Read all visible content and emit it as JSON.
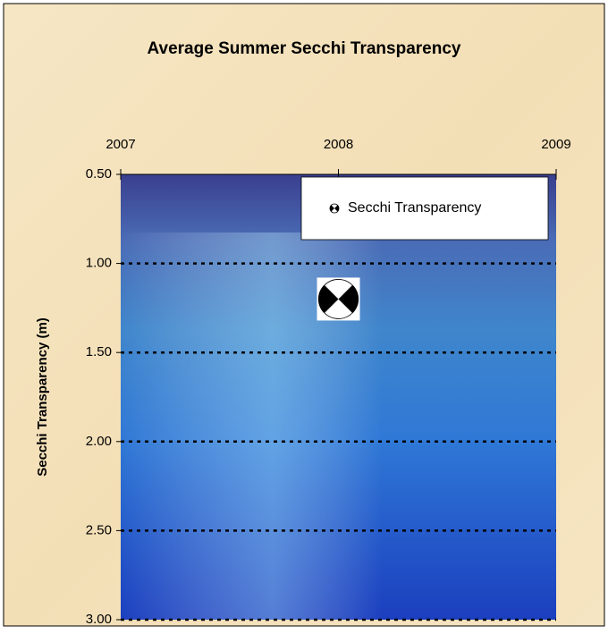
{
  "chart_data": {
    "type": "scatter",
    "title": "Average Summer Secchi Transparency",
    "y_label": "Secchi Transparency (m)",
    "series": [
      {
        "name": "Secchi Transparency",
        "color": "#000000",
        "x": [
          2008
        ],
        "values": [
          1.2
        ]
      }
    ],
    "xlim": [
      2007,
      2009
    ],
    "xticks": [
      2007,
      2008,
      2009
    ],
    "x_axis_position": "top",
    "ylim": [
      0.5,
      3.0
    ],
    "y_reversed": true,
    "yticks": [
      {
        "value": 0.5,
        "label": "0.50"
      },
      {
        "value": 1.0,
        "label": "1.00"
      },
      {
        "value": 1.5,
        "label": "1.50"
      },
      {
        "value": 2.0,
        "label": "2.00"
      },
      {
        "value": 2.5,
        "label": "2.50"
      },
      {
        "value": 3.0,
        "label": "3.00"
      }
    ],
    "grid": true,
    "legend_position": "top-right"
  }
}
